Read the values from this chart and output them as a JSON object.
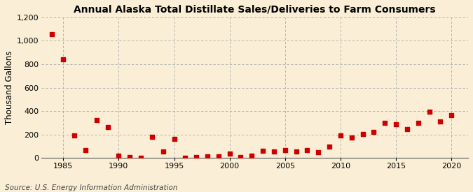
{
  "title": "Annual Alaska Total Distillate Sales/Deliveries to Farm Consumers",
  "ylabel": "Thousand Gallons",
  "source": "Source: U.S. Energy Information Administration",
  "background_color": "#faefd6",
  "marker_color": "#cc0000",
  "years": [
    1984,
    1985,
    1986,
    1987,
    1988,
    1989,
    1990,
    1991,
    1992,
    1993,
    1994,
    1995,
    1996,
    1997,
    1998,
    1999,
    2000,
    2001,
    2002,
    2003,
    2004,
    2005,
    2006,
    2007,
    2008,
    2009,
    2010,
    2011,
    2012,
    2013,
    2014,
    2015,
    2016,
    2017,
    2018,
    2019,
    2020
  ],
  "values": [
    1055,
    840,
    190,
    65,
    325,
    265,
    20,
    10,
    5,
    180,
    55,
    160,
    5,
    10,
    15,
    15,
    40,
    10,
    20,
    60,
    55,
    70,
    55,
    70,
    50,
    95,
    195,
    175,
    205,
    220,
    300,
    290,
    245,
    300,
    395,
    310,
    365
  ],
  "xlim": [
    1983,
    2021.5
  ],
  "ylim": [
    0,
    1200
  ],
  "yticks": [
    0,
    200,
    400,
    600,
    800,
    1000,
    1200
  ],
  "xticks": [
    1985,
    1990,
    1995,
    2000,
    2005,
    2010,
    2015,
    2020
  ],
  "title_fontsize": 10,
  "label_fontsize": 8.5,
  "tick_fontsize": 8,
  "source_fontsize": 7.5,
  "marker_size": 16
}
